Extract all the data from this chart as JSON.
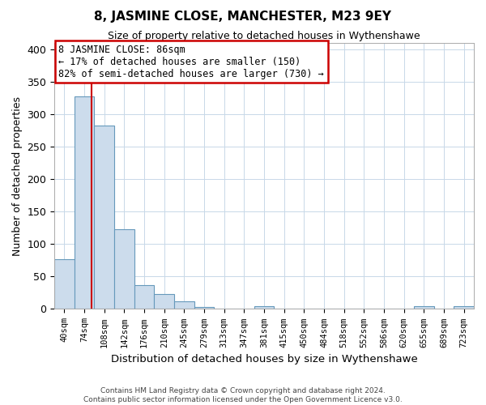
{
  "title": "8, JASMINE CLOSE, MANCHESTER, M23 9EY",
  "subtitle": "Size of property relative to detached houses in Wythenshawe",
  "xlabel": "Distribution of detached houses by size in Wythenshawe",
  "ylabel": "Number of detached properties",
  "footer_lines": [
    "Contains HM Land Registry data © Crown copyright and database right 2024.",
    "Contains public sector information licensed under the Open Government Licence v3.0."
  ],
  "bin_labels": [
    "40sqm",
    "74sqm",
    "108sqm",
    "142sqm",
    "176sqm",
    "210sqm",
    "245sqm",
    "279sqm",
    "313sqm",
    "347sqm",
    "381sqm",
    "415sqm",
    "450sqm",
    "484sqm",
    "518sqm",
    "552sqm",
    "586sqm",
    "620sqm",
    "655sqm",
    "689sqm",
    "723sqm"
  ],
  "bar_heights": [
    77,
    328,
    283,
    123,
    37,
    23,
    12,
    3,
    0,
    0,
    4,
    0,
    0,
    0,
    0,
    0,
    0,
    0,
    4,
    0,
    4
  ],
  "bar_color": "#ccdcec",
  "bar_edge_color": "#6699bb",
  "property_line_x_idx": 1.35,
  "property_line_color": "#cc0000",
  "annotation_title": "8 JASMINE CLOSE: 86sqm",
  "annotation_line1": "← 17% of detached houses are smaller (150)",
  "annotation_line2": "82% of semi-detached houses are larger (730) →",
  "annotation_box_color": "#cc0000",
  "ylim": [
    0,
    410
  ],
  "xlim": [
    -0.5,
    20.5
  ]
}
